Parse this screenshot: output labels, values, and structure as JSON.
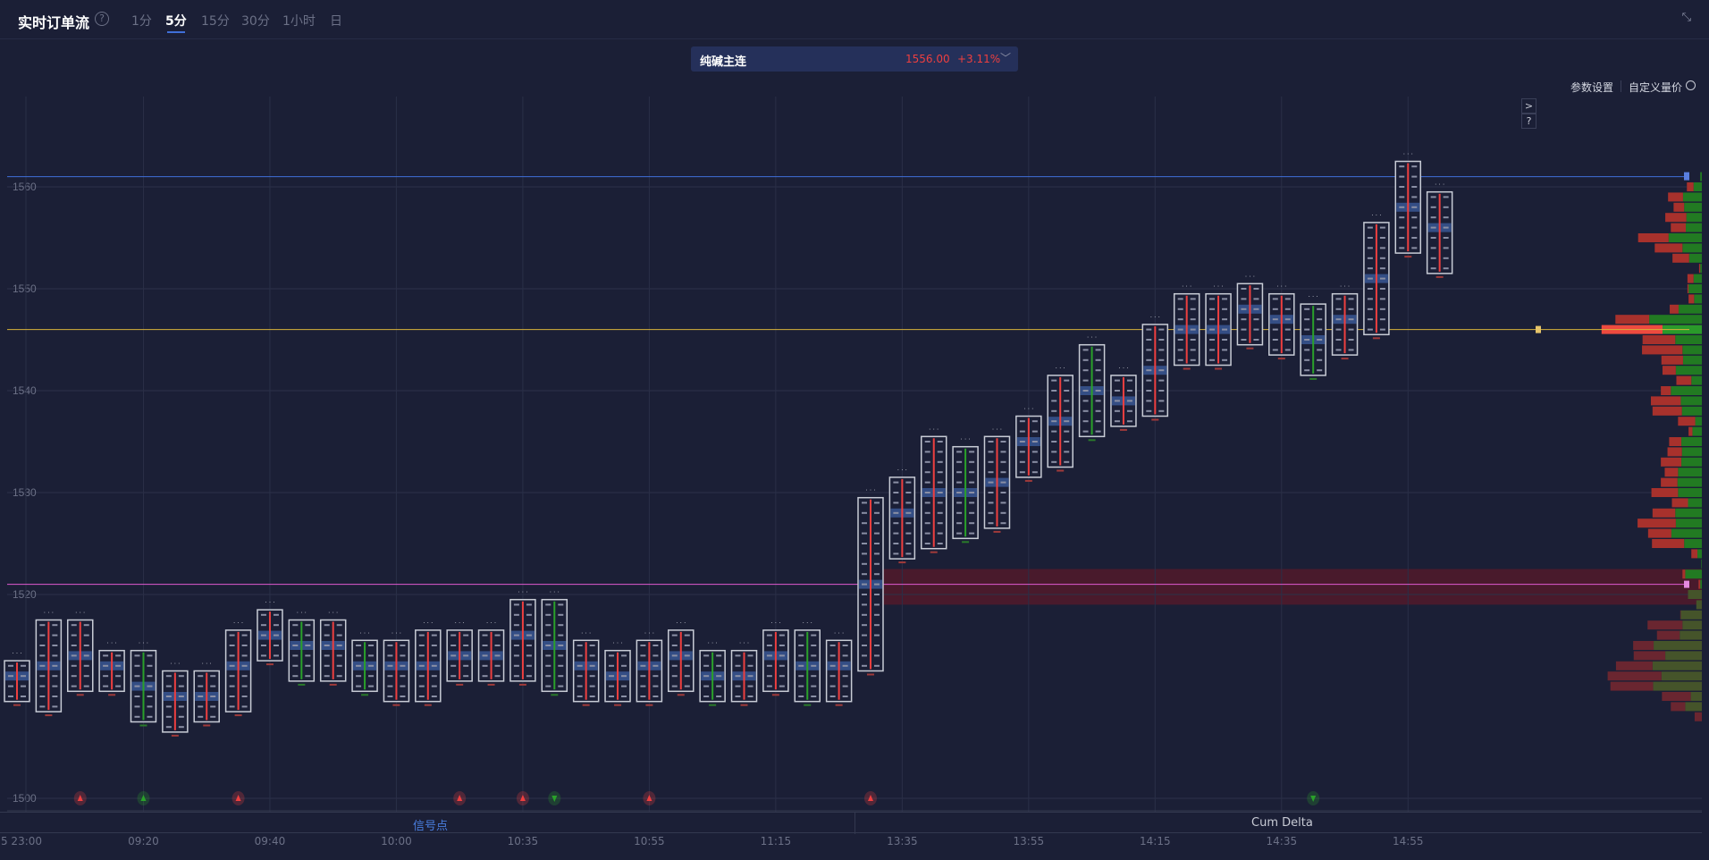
{
  "header": {
    "title": "实时订单流",
    "help_icon": "?",
    "tabs": [
      {
        "label": "1分"
      },
      {
        "label": "5分",
        "active": true
      },
      {
        "label": "15分"
      },
      {
        "label": "30分"
      },
      {
        "label": "1小时"
      },
      {
        "label": "日"
      }
    ],
    "collapse_icon": "⤡"
  },
  "instrument": {
    "name": "纯碱主连",
    "price": "1556.00",
    "change": "+3.11%",
    "caret": "﹀"
  },
  "toolbar": {
    "params": "参数设置",
    "custom": "自定义量价",
    "expand": ">",
    "help": "?"
  },
  "colors": {
    "bg": "#1b1f36",
    "up": "#ee3f3f",
    "down": "#2aa12a",
    "ask": "#a8312c",
    "bid": "#227a22",
    "poc_line": "#d8b23a",
    "high_line": "#3f6fd8",
    "mark_line": "#e05ad0",
    "zone": "#5a1a2a"
  },
  "chart_data": {
    "type": "footprint",
    "y_ticks": [
      1560,
      1550,
      1540,
      1530,
      1520,
      1500
    ],
    "ylim": [
      1498,
      1571
    ],
    "x_ticks": [
      "5 23:00",
      "09:20",
      "09:40",
      "10:00",
      "10:35",
      "10:55",
      "11:15",
      "13:35",
      "13:55",
      "14:15",
      "14:35",
      "14:55"
    ],
    "candles": [
      {
        "high": 1513,
        "low": 1510,
        "dir": "up"
      },
      {
        "high": 1517,
        "low": 1509,
        "dir": "up"
      },
      {
        "high": 1517,
        "low": 1511,
        "dir": "up"
      },
      {
        "high": 1514,
        "low": 1511,
        "dir": "up"
      },
      {
        "high": 1514,
        "low": 1508,
        "dir": "down"
      },
      {
        "high": 1512,
        "low": 1507,
        "dir": "up"
      },
      {
        "high": 1512,
        "low": 1508,
        "dir": "up"
      },
      {
        "high": 1516,
        "low": 1509,
        "dir": "up"
      },
      {
        "high": 1518,
        "low": 1514,
        "dir": "up"
      },
      {
        "high": 1517,
        "low": 1512,
        "dir": "down"
      },
      {
        "high": 1517,
        "low": 1512,
        "dir": "up"
      },
      {
        "high": 1515,
        "low": 1511,
        "dir": "down"
      },
      {
        "high": 1515,
        "low": 1510,
        "dir": "up"
      },
      {
        "high": 1516,
        "low": 1510,
        "dir": "up"
      },
      {
        "high": 1516,
        "low": 1512,
        "dir": "up"
      },
      {
        "high": 1516,
        "low": 1512,
        "dir": "up"
      },
      {
        "high": 1519,
        "low": 1512,
        "dir": "up"
      },
      {
        "high": 1519,
        "low": 1511,
        "dir": "down"
      },
      {
        "high": 1515,
        "low": 1510,
        "dir": "up"
      },
      {
        "high": 1514,
        "low": 1510,
        "dir": "up"
      },
      {
        "high": 1515,
        "low": 1510,
        "dir": "up"
      },
      {
        "high": 1516,
        "low": 1511,
        "dir": "up"
      },
      {
        "high": 1514,
        "low": 1510,
        "dir": "down"
      },
      {
        "high": 1514,
        "low": 1510,
        "dir": "up"
      },
      {
        "high": 1516,
        "low": 1511,
        "dir": "up"
      },
      {
        "high": 1516,
        "low": 1510,
        "dir": "down"
      },
      {
        "high": 1515,
        "low": 1510,
        "dir": "up"
      },
      {
        "high": 1529,
        "low": 1513,
        "dir": "up"
      },
      {
        "high": 1531,
        "low": 1524,
        "dir": "up"
      },
      {
        "high": 1535,
        "low": 1525,
        "dir": "up"
      },
      {
        "high": 1534,
        "low": 1526,
        "dir": "down"
      },
      {
        "high": 1535,
        "low": 1527,
        "dir": "up"
      },
      {
        "high": 1537,
        "low": 1532,
        "dir": "up"
      },
      {
        "high": 1541,
        "low": 1533,
        "dir": "up"
      },
      {
        "high": 1544,
        "low": 1536,
        "dir": "down"
      },
      {
        "high": 1541,
        "low": 1537,
        "dir": "up"
      },
      {
        "high": 1546,
        "low": 1538,
        "dir": "up"
      },
      {
        "high": 1549,
        "low": 1543,
        "dir": "up"
      },
      {
        "high": 1549,
        "low": 1543,
        "dir": "up"
      },
      {
        "high": 1550,
        "low": 1545,
        "dir": "up"
      },
      {
        "high": 1549,
        "low": 1544,
        "dir": "up"
      },
      {
        "high": 1548,
        "low": 1542,
        "dir": "down"
      },
      {
        "high": 1549,
        "low": 1544,
        "dir": "up"
      },
      {
        "high": 1556,
        "low": 1546,
        "dir": "up"
      },
      {
        "high": 1562,
        "low": 1554,
        "dir": "up"
      },
      {
        "high": 1559,
        "low": 1552,
        "dir": "up"
      }
    ],
    "lines": [
      {
        "price": 1561,
        "color": "#3f6fd8"
      },
      {
        "price": 1546,
        "color": "#d8b23a"
      },
      {
        "price": 1521,
        "color": "#e05ad0"
      }
    ],
    "zone": {
      "from": 1519,
      "to": 1522.5
    },
    "volume_profile": [
      {
        "price": 1561,
        "ask": 0,
        "bid": 3
      },
      {
        "price": 1560,
        "ask": 12,
        "bid": 15
      },
      {
        "price": 1559,
        "ask": 27,
        "bid": 34
      },
      {
        "price": 1558,
        "ask": 19,
        "bid": 32
      },
      {
        "price": 1557,
        "ask": 38,
        "bid": 28
      },
      {
        "price": 1556,
        "ask": 27,
        "bid": 29
      },
      {
        "price": 1555,
        "ask": 55,
        "bid": 60
      },
      {
        "price": 1554,
        "ask": 50,
        "bid": 35
      },
      {
        "price": 1553,
        "ask": 30,
        "bid": 23
      },
      {
        "price": 1552,
        "ask": 2,
        "bid": 3
      },
      {
        "price": 1551,
        "ask": 11,
        "bid": 15
      },
      {
        "price": 1550,
        "ask": 2,
        "bid": 24
      },
      {
        "price": 1549,
        "ask": 10,
        "bid": 14
      },
      {
        "price": 1548,
        "ask": 16,
        "bid": 42
      },
      {
        "price": 1547,
        "ask": 61,
        "bid": 95
      },
      {
        "price": 1546,
        "ask": 110,
        "bid": 71,
        "poc": true
      },
      {
        "price": 1545,
        "ask": 59,
        "bid": 48
      },
      {
        "price": 1544,
        "ask": 73,
        "bid": 35
      },
      {
        "price": 1543,
        "ask": 39,
        "bid": 34
      },
      {
        "price": 1542,
        "ask": 24,
        "bid": 47
      },
      {
        "price": 1541,
        "ask": 27,
        "bid": 19
      },
      {
        "price": 1540,
        "ask": 18,
        "bid": 56
      },
      {
        "price": 1539,
        "ask": 54,
        "bid": 38
      },
      {
        "price": 1538,
        "ask": 53,
        "bid": 36
      },
      {
        "price": 1537,
        "ask": 31,
        "bid": 12
      },
      {
        "price": 1536,
        "ask": 7,
        "bid": 17
      },
      {
        "price": 1535,
        "ask": 22,
        "bid": 37
      },
      {
        "price": 1534,
        "ask": 26,
        "bid": 36
      },
      {
        "price": 1533,
        "ask": 37,
        "bid": 37
      },
      {
        "price": 1532,
        "ask": 24,
        "bid": 43
      },
      {
        "price": 1531,
        "ask": 30,
        "bid": 44
      },
      {
        "price": 1530,
        "ask": 48,
        "bid": 43
      },
      {
        "price": 1529,
        "ask": 29,
        "bid": 25
      },
      {
        "price": 1528,
        "ask": 41,
        "bid": 48
      },
      {
        "price": 1527,
        "ask": 69,
        "bid": 47
      },
      {
        "price": 1526,
        "ask": 42,
        "bid": 55
      },
      {
        "price": 1525,
        "ask": 58,
        "bid": 32
      },
      {
        "price": 1524,
        "ask": 11,
        "bid": 8
      },
      {
        "price": 1523,
        "ask": 0,
        "bid": 1
      },
      {
        "price": 1522,
        "ask": 5,
        "bid": 30
      },
      {
        "price": 1521,
        "ask": 3,
        "bid": 3
      },
      {
        "price": 1520,
        "ask": 0,
        "bid": 25,
        "dim": true
      },
      {
        "price": 1519,
        "ask": 0,
        "bid": 10,
        "dim": true
      },
      {
        "price": 1518,
        "ask": 1,
        "bid": 38,
        "dim": true
      },
      {
        "price": 1517,
        "ask": 63,
        "bid": 35,
        "dim": true
      },
      {
        "price": 1516,
        "ask": 41,
        "bid": 40,
        "dim": true
      },
      {
        "price": 1515,
        "ask": 37,
        "bid": 87,
        "dim": true
      },
      {
        "price": 1514,
        "ask": 57,
        "bid": 66,
        "dim": true
      },
      {
        "price": 1513,
        "ask": 66,
        "bid": 89,
        "dim": true
      },
      {
        "price": 1512,
        "ask": 97,
        "bid": 73,
        "dim": true
      },
      {
        "price": 1511,
        "ask": 77,
        "bid": 88,
        "dim": true
      },
      {
        "price": 1510,
        "ask": 52,
        "bid": 20,
        "dim": true
      },
      {
        "price": 1509,
        "ask": 26,
        "bid": 30,
        "dim": true
      },
      {
        "price": 1508,
        "ask": 13,
        "bid": 0,
        "dim": true
      }
    ],
    "signals": [
      {
        "slot": 2,
        "type": "up",
        "color": "#ee3f3f"
      },
      {
        "slot": 4,
        "type": "up",
        "color": "#2aa12a"
      },
      {
        "slot": 7,
        "type": "up",
        "color": "#ee3f3f"
      },
      {
        "slot": 14,
        "type": "up",
        "color": "#ee3f3f"
      },
      {
        "slot": 16,
        "type": "up",
        "color": "#ee3f3f"
      },
      {
        "slot": 17,
        "type": "down",
        "color": "#2aa12a"
      },
      {
        "slot": 20,
        "type": "up",
        "color": "#ee3f3f"
      },
      {
        "slot": 27,
        "type": "up",
        "color": "#ee3f3f"
      },
      {
        "slot": 41,
        "type": "down",
        "color": "#2aa12a"
      }
    ]
  },
  "panels": {
    "signals": "信号点",
    "cum_delta": "Cum Delta"
  }
}
